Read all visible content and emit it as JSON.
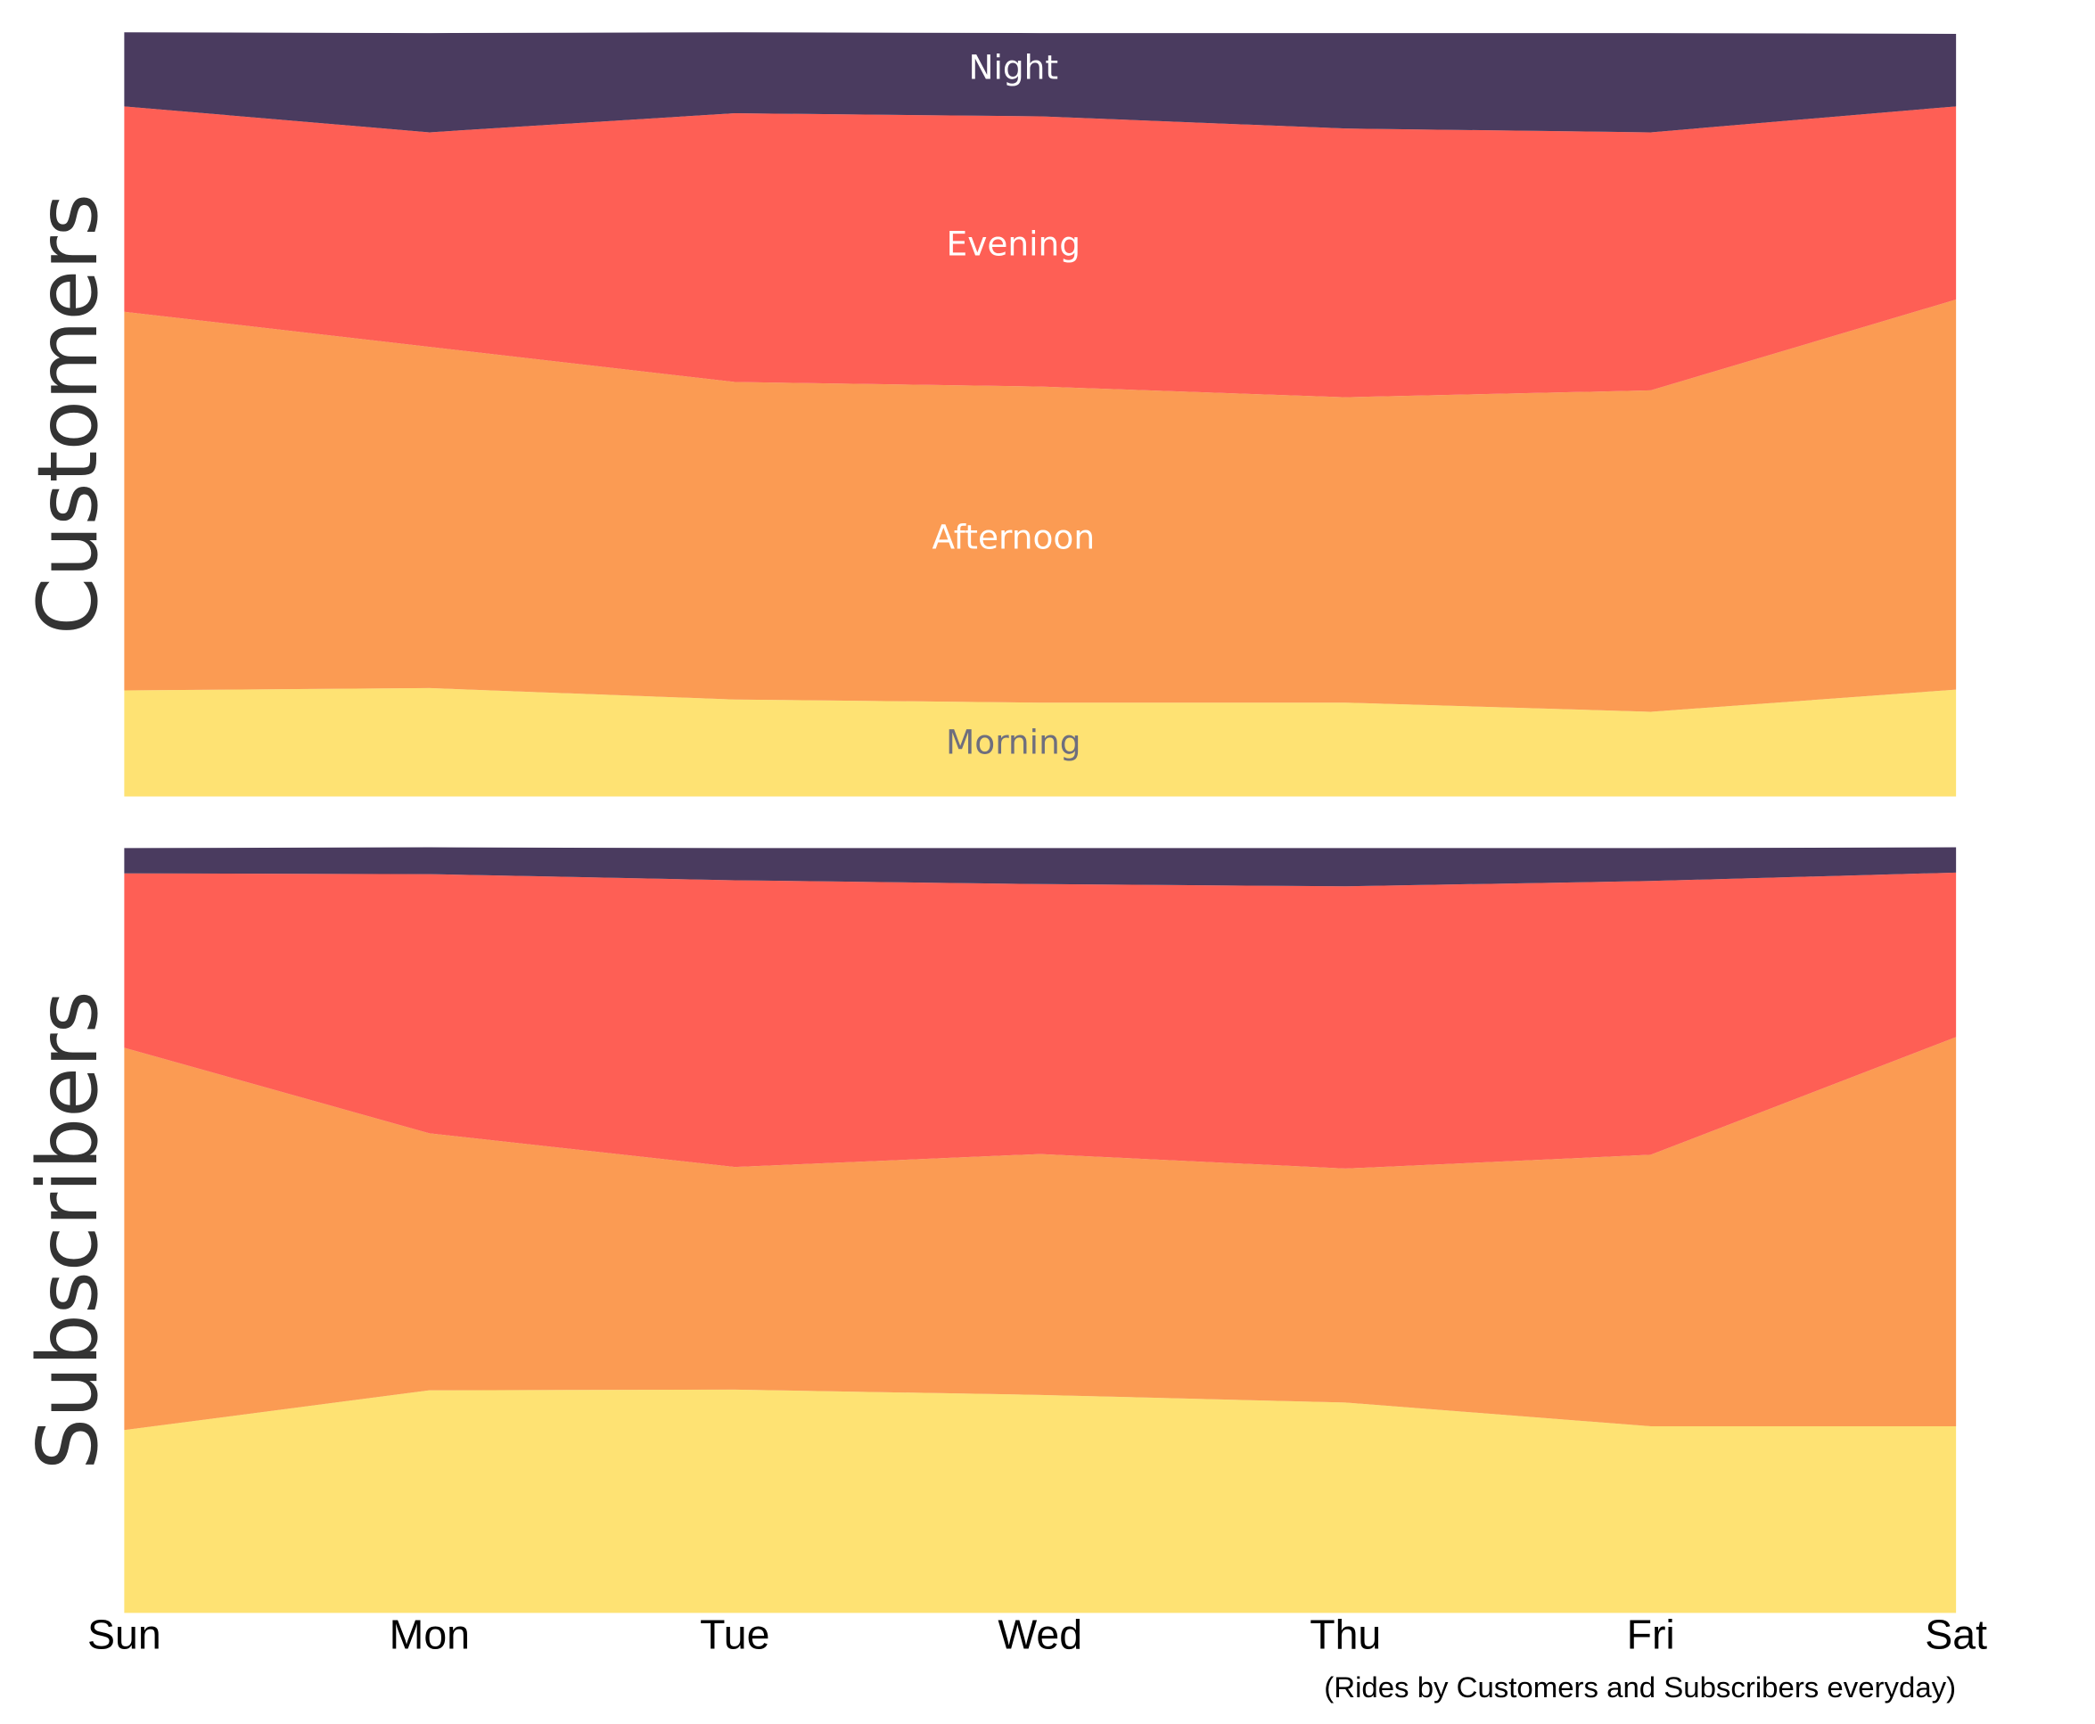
{
  "chart_data": [
    {
      "type": "area",
      "stacked": true,
      "ylabel": "Customers",
      "ylim": [
        0,
        100
      ],
      "series": [
        {
          "name": "Morning",
          "color": "#fee273",
          "label_color": "#6e6e7e",
          "values": [
            13.9,
            14.2,
            12.7,
            12.3,
            12.3,
            11.1,
            14.0
          ]
        },
        {
          "name": "Afternoon",
          "color": "#fb9b53",
          "label_color": "#ffffff",
          "values": [
            49.6,
            44.7,
            41.6,
            41.4,
            40.0,
            42.1,
            51.1
          ]
        },
        {
          "name": "Evening",
          "color": "#fe5f55",
          "label_color": "#ffffff",
          "values": [
            26.9,
            28.1,
            35.2,
            35.4,
            35.2,
            33.8,
            25.3
          ]
        },
        {
          "name": "Night",
          "color": "#4a3b5f",
          "label_color": "#ffffff",
          "values": [
            9.7,
            13.0,
            10.6,
            10.9,
            12.5,
            13.0,
            9.5
          ]
        }
      ]
    },
    {
      "type": "area",
      "stacked": true,
      "ylabel": "Subscribers",
      "ylim": [
        0,
        100
      ],
      "categories": [
        "Sun",
        "Mon",
        "Tue",
        "Wed",
        "Thu",
        "Fri",
        "Sat"
      ],
      "caption": "(Rides by Customers and Subscribers everyday)",
      "series": [
        {
          "color": "#fee273",
          "values": [
            23.9,
            29.1,
            29.2,
            28.5,
            27.5,
            24.4,
            24.4
          ]
        },
        {
          "color": "#fb9b53",
          "values": [
            50.0,
            33.6,
            29.1,
            31.5,
            30.6,
            35.5,
            50.9
          ]
        },
        {
          "color": "#fe5f55",
          "values": [
            22.8,
            33.9,
            37.5,
            35.3,
            36.9,
            35.8,
            21.5
          ]
        },
        {
          "color": "#4a3b5f",
          "values": [
            3.3,
            3.5,
            4.2,
            4.7,
            5.0,
            4.3,
            3.3
          ]
        }
      ]
    }
  ]
}
